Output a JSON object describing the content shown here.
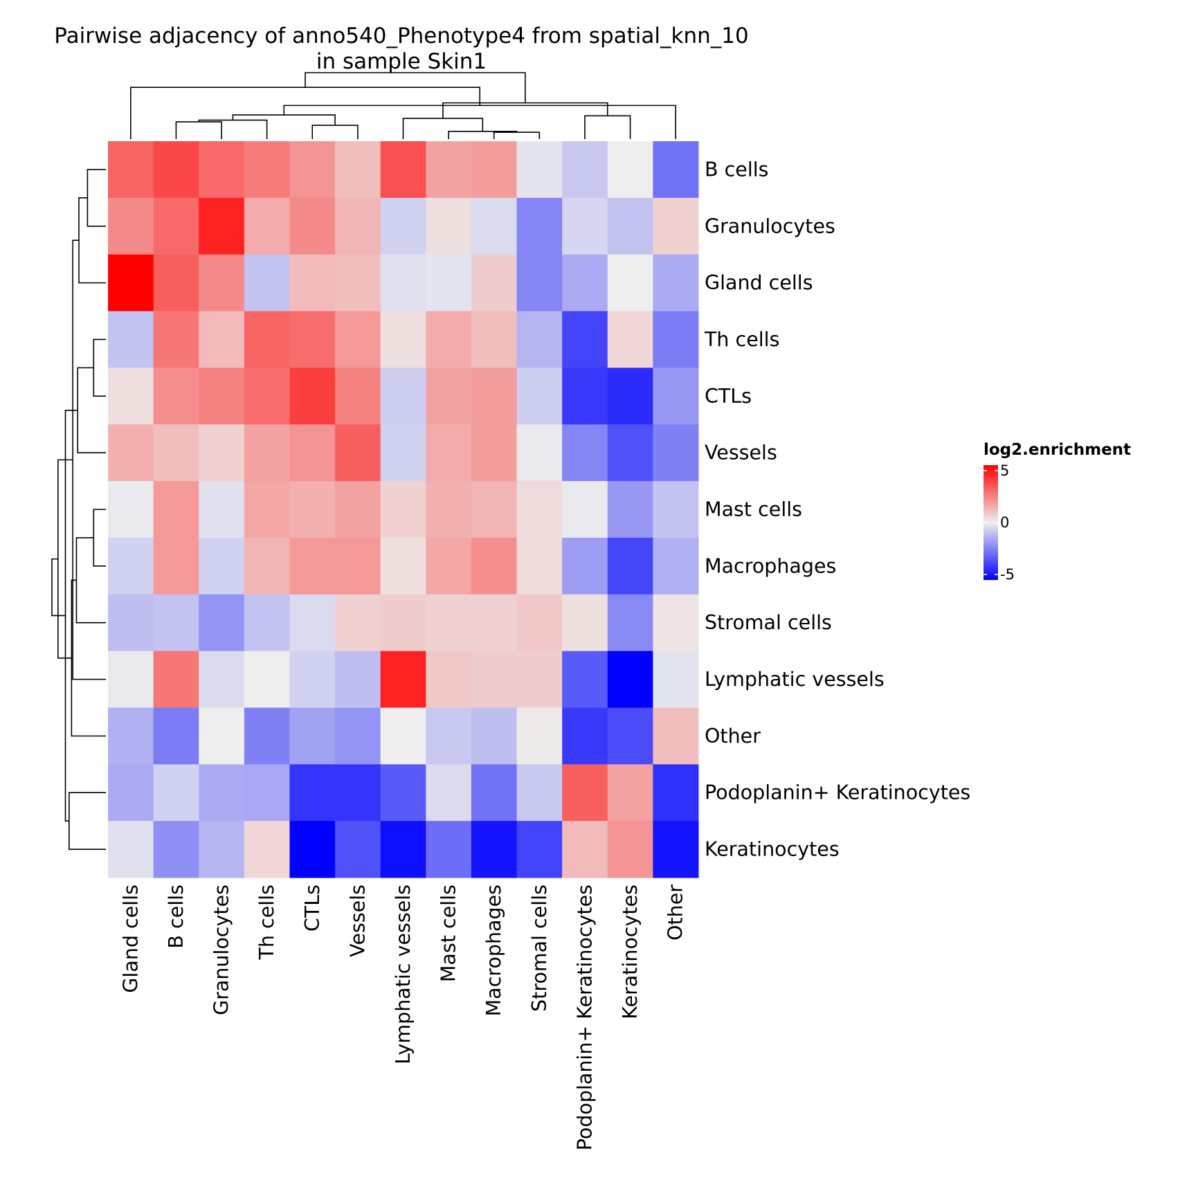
{
  "chart_data": {
    "type": "heatmap",
    "title_lines": [
      "Pairwise adjacency of anno540_Phenotype4 from spatial_knn_10",
      "in sample Skin1"
    ],
    "rows": [
      "B cells",
      "Granulocytes",
      "Gland cells",
      "Th cells",
      "CTLs",
      "Vessels",
      "Mast cells",
      "Macrophages",
      "Stromal cells",
      "Lymphatic vessels",
      "Other",
      "Podoplanin+ Keratinocytes",
      "Keratinocytes"
    ],
    "columns": [
      "Gland cells",
      "B cells",
      "Granulocytes",
      "Th cells",
      "CTLs",
      "Vessels",
      "Lymphatic vessels",
      "Mast cells",
      "Macrophages",
      "Stromal cells",
      "Podoplanin+ Keratinocytes",
      "Keratinocytes",
      "Other"
    ],
    "values": [
      [
        2.9,
        3.5,
        2.8,
        2.4,
        1.9,
        1.0,
        3.3,
        1.6,
        1.7,
        -0.2,
        -0.8,
        0.0,
        -2.6
      ],
      [
        2.1,
        2.8,
        4.3,
        1.4,
        2.1,
        1.2,
        -0.6,
        0.3,
        -0.4,
        -2.2,
        -0.5,
        -0.9,
        0.6
      ],
      [
        5.2,
        3.0,
        2.1,
        -0.9,
        1.1,
        1.0,
        -0.3,
        -0.2,
        0.7,
        -2.2,
        -1.4,
        0.0,
        -1.4
      ],
      [
        -0.9,
        2.5,
        1.1,
        2.9,
        2.7,
        1.8,
        0.3,
        1.4,
        1.0,
        -1.2,
        -3.6,
        0.5,
        -2.4
      ],
      [
        0.3,
        2.0,
        2.3,
        2.7,
        3.7,
        2.3,
        -0.7,
        1.6,
        1.7,
        -0.7,
        -3.8,
        -4.1,
        -1.8
      ],
      [
        1.3,
        1.0,
        0.6,
        1.6,
        1.9,
        3.0,
        -0.6,
        1.4,
        1.7,
        -0.1,
        -2.2,
        -3.3,
        -2.3
      ],
      [
        -0.1,
        1.8,
        -0.3,
        1.5,
        1.3,
        1.6,
        0.6,
        1.3,
        1.2,
        0.4,
        -0.1,
        -1.8,
        -0.9
      ],
      [
        -0.6,
        1.8,
        -0.6,
        1.2,
        1.8,
        1.8,
        0.3,
        1.5,
        2.0,
        0.4,
        -1.7,
        -3.5,
        -1.3
      ],
      [
        -1.0,
        -0.9,
        -1.9,
        -0.9,
        -0.4,
        0.6,
        0.7,
        0.6,
        0.6,
        0.8,
        0.3,
        -2.1,
        0.2
      ],
      [
        -0.1,
        2.5,
        -0.4,
        0.0,
        -0.6,
        -1.0,
        4.3,
        0.8,
        0.7,
        0.7,
        -3.1,
        -5.0,
        -0.2
      ],
      [
        -1.3,
        -2.4,
        0.0,
        -2.3,
        -1.6,
        -1.9,
        0.0,
        -0.8,
        -1.0,
        0.1,
        -3.8,
        -3.4,
        1.0
      ],
      [
        -1.4,
        -0.6,
        -1.4,
        -1.5,
        -3.9,
        -3.9,
        -3.1,
        -0.4,
        -2.6,
        -0.8,
        3.0,
        1.6,
        -4.0
      ],
      [
        -0.3,
        -2.0,
        -1.2,
        0.5,
        -5.5,
        -3.3,
        -4.7,
        -2.7,
        -4.6,
        -3.6,
        1.1,
        1.9,
        -4.6
      ]
    ],
    "color_scale": {
      "min": -5,
      "mid": 0,
      "max": 5,
      "low_color": "#0000ff",
      "mid_color": "#eeeeee",
      "high_color": "#ff0000"
    },
    "legend": {
      "title": "log2.enrichment",
      "ticks": [
        5,
        0,
        -5
      ],
      "tick_labels": [
        "5",
        "0",
        "-5"
      ],
      "placement": "right"
    },
    "row_dendrogram": {
      "merges": [
        [
          0,
          1
        ],
        [
          3,
          4
        ],
        [
          6,
          7
        ],
        [
          11,
          12
        ],
        [
          13,
          2
        ],
        [
          15,
          8
        ],
        [
          14,
          5
        ],
        [
          17,
          9
        ],
        [
          18,
          10
        ],
        [
          16,
          19
        ],
        [
          20,
          21
        ],
        [
          22,
          23
        ]
      ],
      "heights": [
        0.15,
        0.1,
        0.1,
        0.3,
        0.22,
        0.24,
        0.23,
        0.27,
        0.28,
        0.33,
        0.39,
        0.44
      ]
    },
    "column_dendrogram": {
      "merges": [
        [
          4,
          5
        ],
        [
          1,
          2
        ],
        [
          8,
          9
        ],
        [
          10,
          11
        ],
        [
          14,
          3
        ],
        [
          7,
          15
        ],
        [
          17,
          13
        ],
        [
          18,
          6
        ],
        [
          19,
          12
        ],
        [
          16,
          20
        ],
        [
          0,
          21
        ],
        [
          22,
          23
        ]
      ],
      "heights": [
        0.16,
        0.2,
        0.08,
        0.27,
        0.22,
        0.09,
        0.28,
        0.24,
        0.39,
        0.42,
        0.6,
        0.77
      ]
    }
  }
}
